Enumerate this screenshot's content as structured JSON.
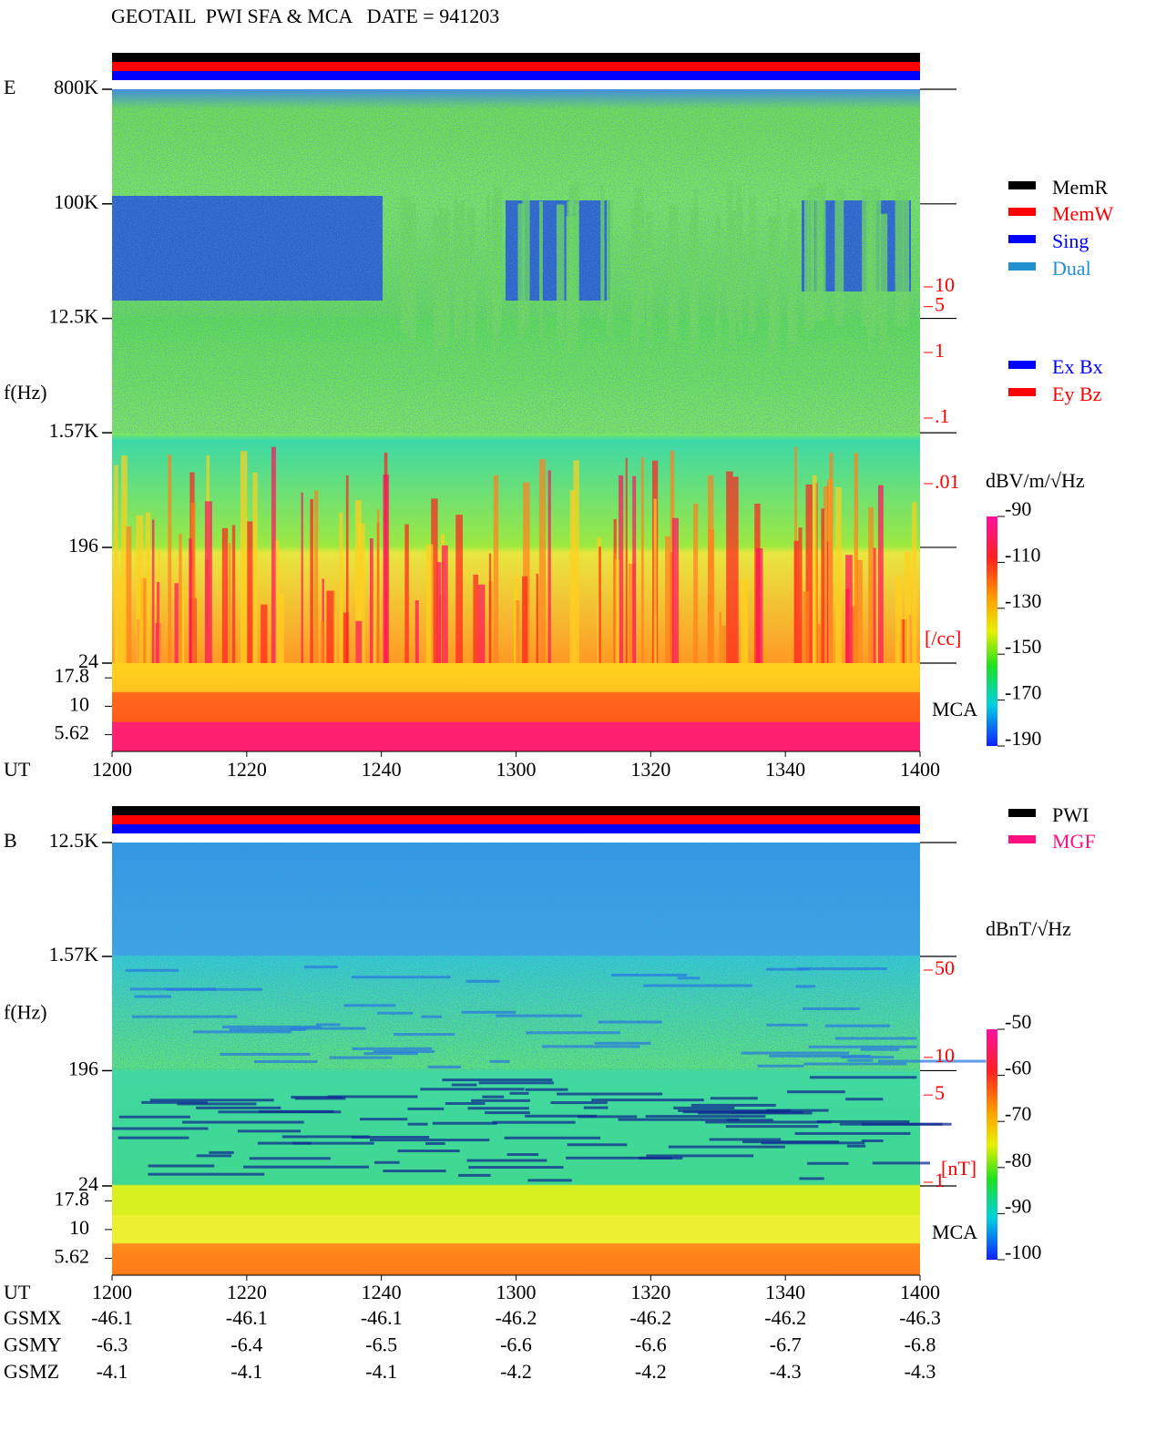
{
  "title": "GEOTAIL  PWI SFA & MCA   DATE = 941203",
  "chart_data": [
    {
      "type": "spectrogram",
      "panel_label": "E",
      "ylabel": "f(Hz)",
      "xlabel": "UT",
      "log_y": true,
      "ylim": [
        24,
        800000
      ],
      "yticks": [
        {
          "value": 800000,
          "label": "800K"
        },
        {
          "value": 100000,
          "label": "100K"
        },
        {
          "value": 12500,
          "label": "12.5K"
        },
        {
          "value": 1570,
          "label": "1.57K"
        },
        196,
        24
      ],
      "mca_label": "MCA",
      "mca_ylim": [
        4,
        24
      ],
      "mca_yticks": [
        17.8,
        10,
        5.62
      ],
      "xlim": [
        "1200",
        "1400"
      ],
      "xticks": [
        "1200",
        "1220",
        "1240",
        "1300",
        "1320",
        "1340",
        "1400"
      ],
      "density_label": "[/cc]",
      "density_color": "#ff0000",
      "density_lim": [
        0.001,
        100
      ],
      "density_ticks": [
        10,
        5,
        1,
        {
          "value": 0.1,
          "label": ".1"
        },
        {
          "value": 0.01,
          "label": ".01"
        }
      ],
      "colorbar": {
        "label": "dBV/m/√Hz",
        "lim": [
          -190,
          -90
        ],
        "ticks": [
          -90,
          -110,
          -130,
          -150,
          -170,
          -190
        ]
      },
      "legend_groups": [
        [
          {
            "name": "MemR",
            "color": "#000000"
          },
          {
            "name": "MemW",
            "color": "#ff0000"
          },
          {
            "name": "Sing",
            "color": "#0000ff"
          },
          {
            "name": "Dual",
            "color": "#2090d0"
          }
        ],
        [
          {
            "name": "Ex Bx",
            "color": "#0000ff"
          },
          {
            "name": "Ey Bz",
            "color": "#ff0000"
          }
        ]
      ]
    },
    {
      "type": "spectrogram",
      "panel_label": "B",
      "ylabel": "f(Hz)",
      "xlabel": "UT",
      "log_y": true,
      "ylim": [
        24,
        12500
      ],
      "yticks": [
        {
          "value": 12500,
          "label": "12.5K"
        },
        {
          "value": 1570,
          "label": "1.57K"
        },
        196,
        24
      ],
      "mca_label": "MCA",
      "mca_ylim": [
        4,
        24
      ],
      "mca_yticks": [
        17.8,
        10,
        5.62
      ],
      "xlim": [
        "1200",
        "1400"
      ],
      "xticks": [
        "1200",
        "1220",
        "1240",
        "1300",
        "1320",
        "1340",
        "1400"
      ],
      "density_label": "[nT]",
      "density_color": "#ff0000",
      "density_lim": [
        1,
        50
      ],
      "density_ticks": [
        50,
        10,
        5,
        1
      ],
      "colorbar": {
        "label": "dBnT/√Hz",
        "lim": [
          -100,
          -50
        ],
        "ticks": [
          -50,
          -60,
          -70,
          -80,
          -90,
          -100
        ]
      },
      "legend_groups": [
        [
          {
            "name": "PWI",
            "color": "#000000"
          },
          {
            "name": "MGF",
            "color": "#ff1080"
          }
        ]
      ]
    }
  ],
  "orbit": {
    "rows": [
      {
        "name": "GSMX",
        "values": [
          -46.1,
          -46.1,
          -46.1,
          -46.2,
          -46.2,
          -46.2,
          -46.3
        ]
      },
      {
        "name": "GSMY",
        "values": [
          -6.3,
          -6.4,
          -6.5,
          -6.6,
          -6.6,
          -6.7,
          -6.8
        ]
      },
      {
        "name": "GSMZ",
        "values": [
          -4.1,
          -4.1,
          -4.1,
          -4.2,
          -4.2,
          -4.3,
          -4.3
        ]
      }
    ]
  }
}
